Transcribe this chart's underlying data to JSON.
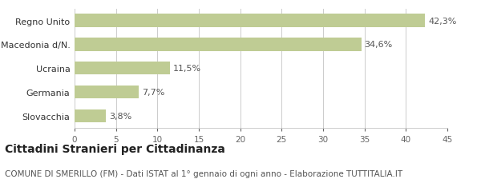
{
  "categories": [
    "Slovacchia",
    "Germania",
    "Ucraina",
    "Macedonia d/N.",
    "Regno Unito"
  ],
  "values": [
    3.8,
    7.7,
    11.5,
    34.6,
    42.3
  ],
  "labels": [
    "3,8%",
    "7,7%",
    "11,5%",
    "34,6%",
    "42,3%"
  ],
  "bar_color": "#bfcc94",
  "xlim": [
    0,
    45
  ],
  "xticks": [
    0,
    5,
    10,
    15,
    20,
    25,
    30,
    35,
    40,
    45
  ],
  "title_bold": "Cittadini Stranieri per Cittadinanza",
  "subtitle": "COMUNE DI SMERILLO (FM) - Dati ISTAT al 1° gennaio di ogni anno - Elaborazione TUTTITALIA.IT",
  "title_fontsize": 10,
  "subtitle_fontsize": 7.5,
  "label_fontsize": 8,
  "tick_fontsize": 7.5,
  "ytick_fontsize": 8,
  "background_color": "#ffffff",
  "grid_color": "#cccccc"
}
